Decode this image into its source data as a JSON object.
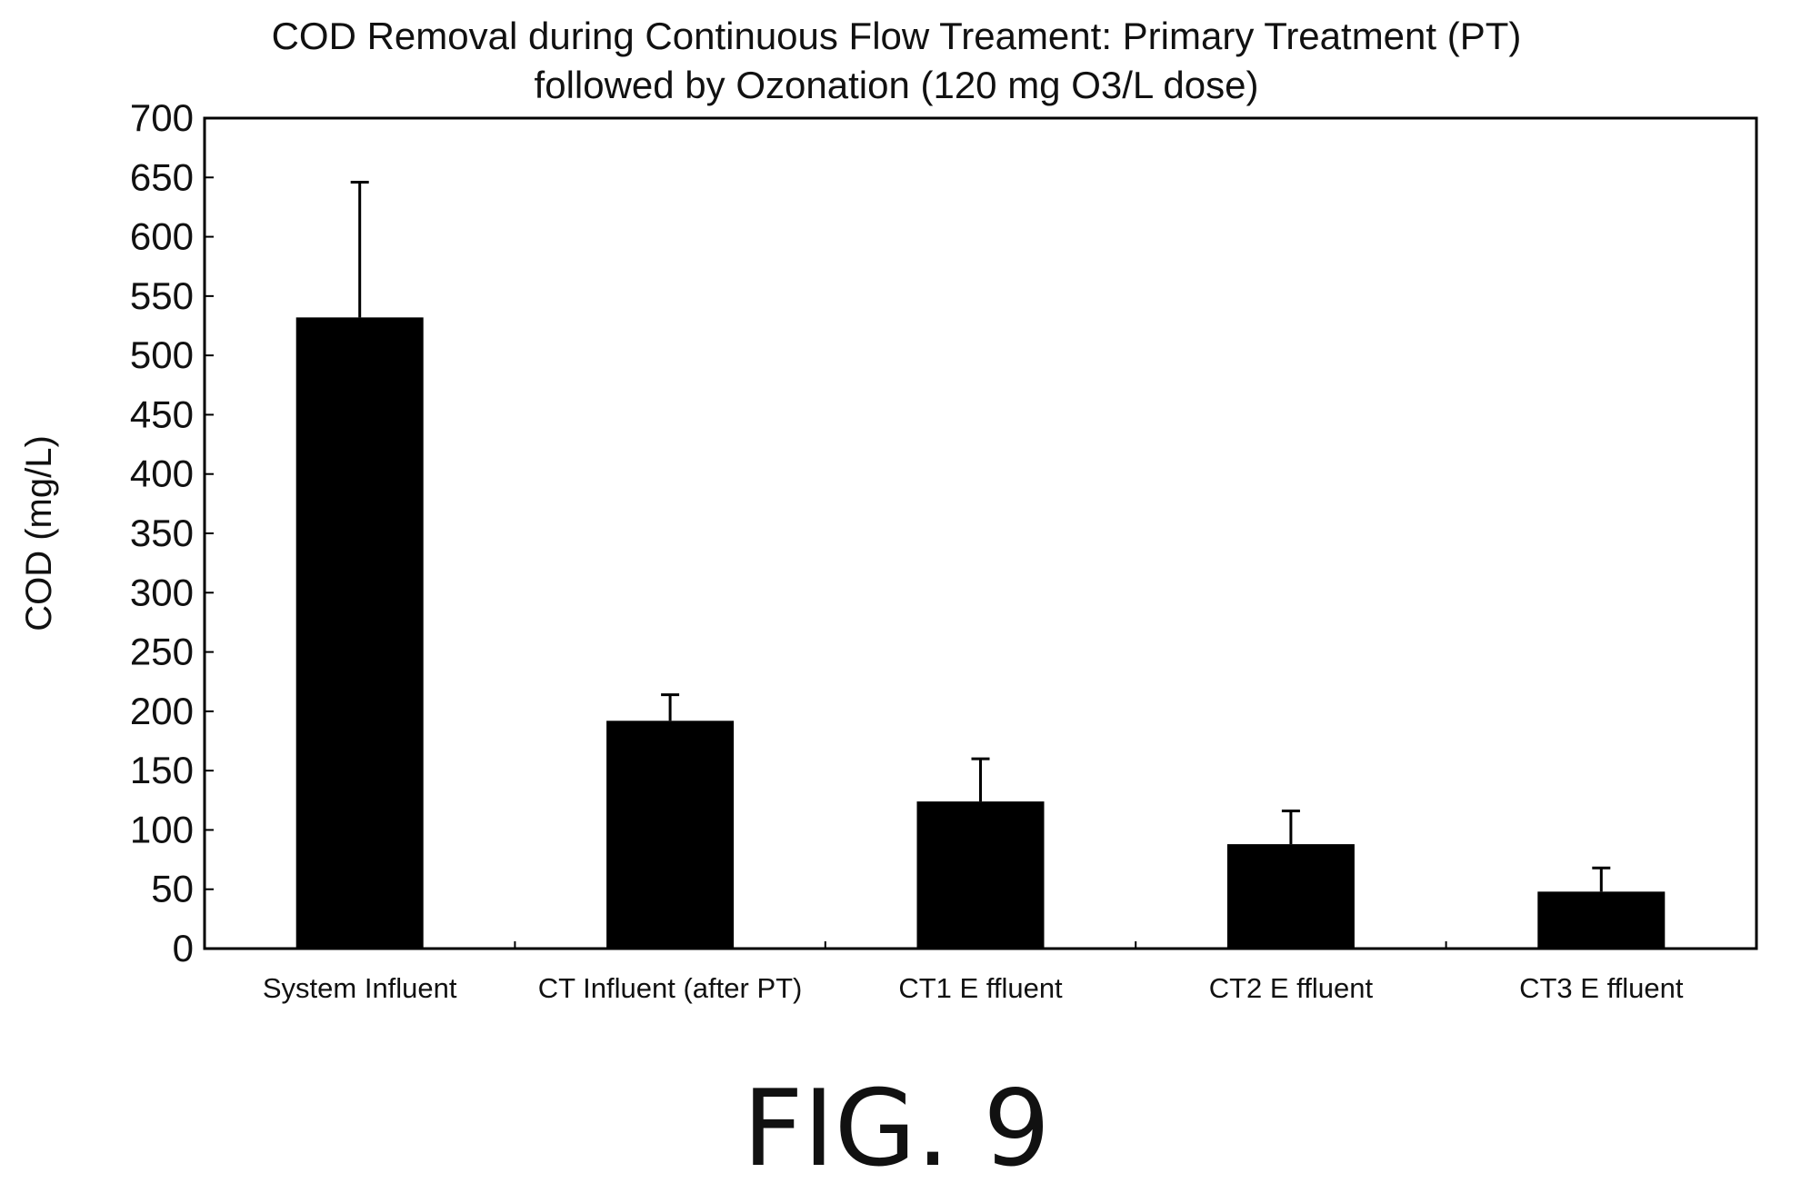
{
  "chart_data": {
    "type": "bar",
    "title_lines": [
      "COD Removal during Continuous Flow Treament: Primary Treatment (PT)",
      "followed by Ozonation (120 mg O3/L dose)"
    ],
    "xlabel": "",
    "ylabel": "COD (mg/L)",
    "categories": [
      "System Influent",
      "CT Influent (after PT)",
      "CT1 Effluent",
      "CT2 Effluent",
      "CT3 Effluent"
    ],
    "category_labels": [
      "System Influent",
      "CT Influent (after PT)",
      "CT1 E ffluent",
      "CT2 E ffluent",
      "CT3 E ffluent"
    ],
    "values": [
      532,
      192,
      124,
      88,
      48
    ],
    "error_upper": [
      114,
      22,
      36,
      28,
      20
    ],
    "ylim": [
      0,
      700
    ],
    "yticks": [
      0,
      50,
      100,
      150,
      200,
      250,
      300,
      350,
      400,
      450,
      500,
      550,
      600,
      650,
      700
    ],
    "bar_color": "#000000",
    "grid": false,
    "legend": "none"
  },
  "figure_label": "FIG. 9"
}
